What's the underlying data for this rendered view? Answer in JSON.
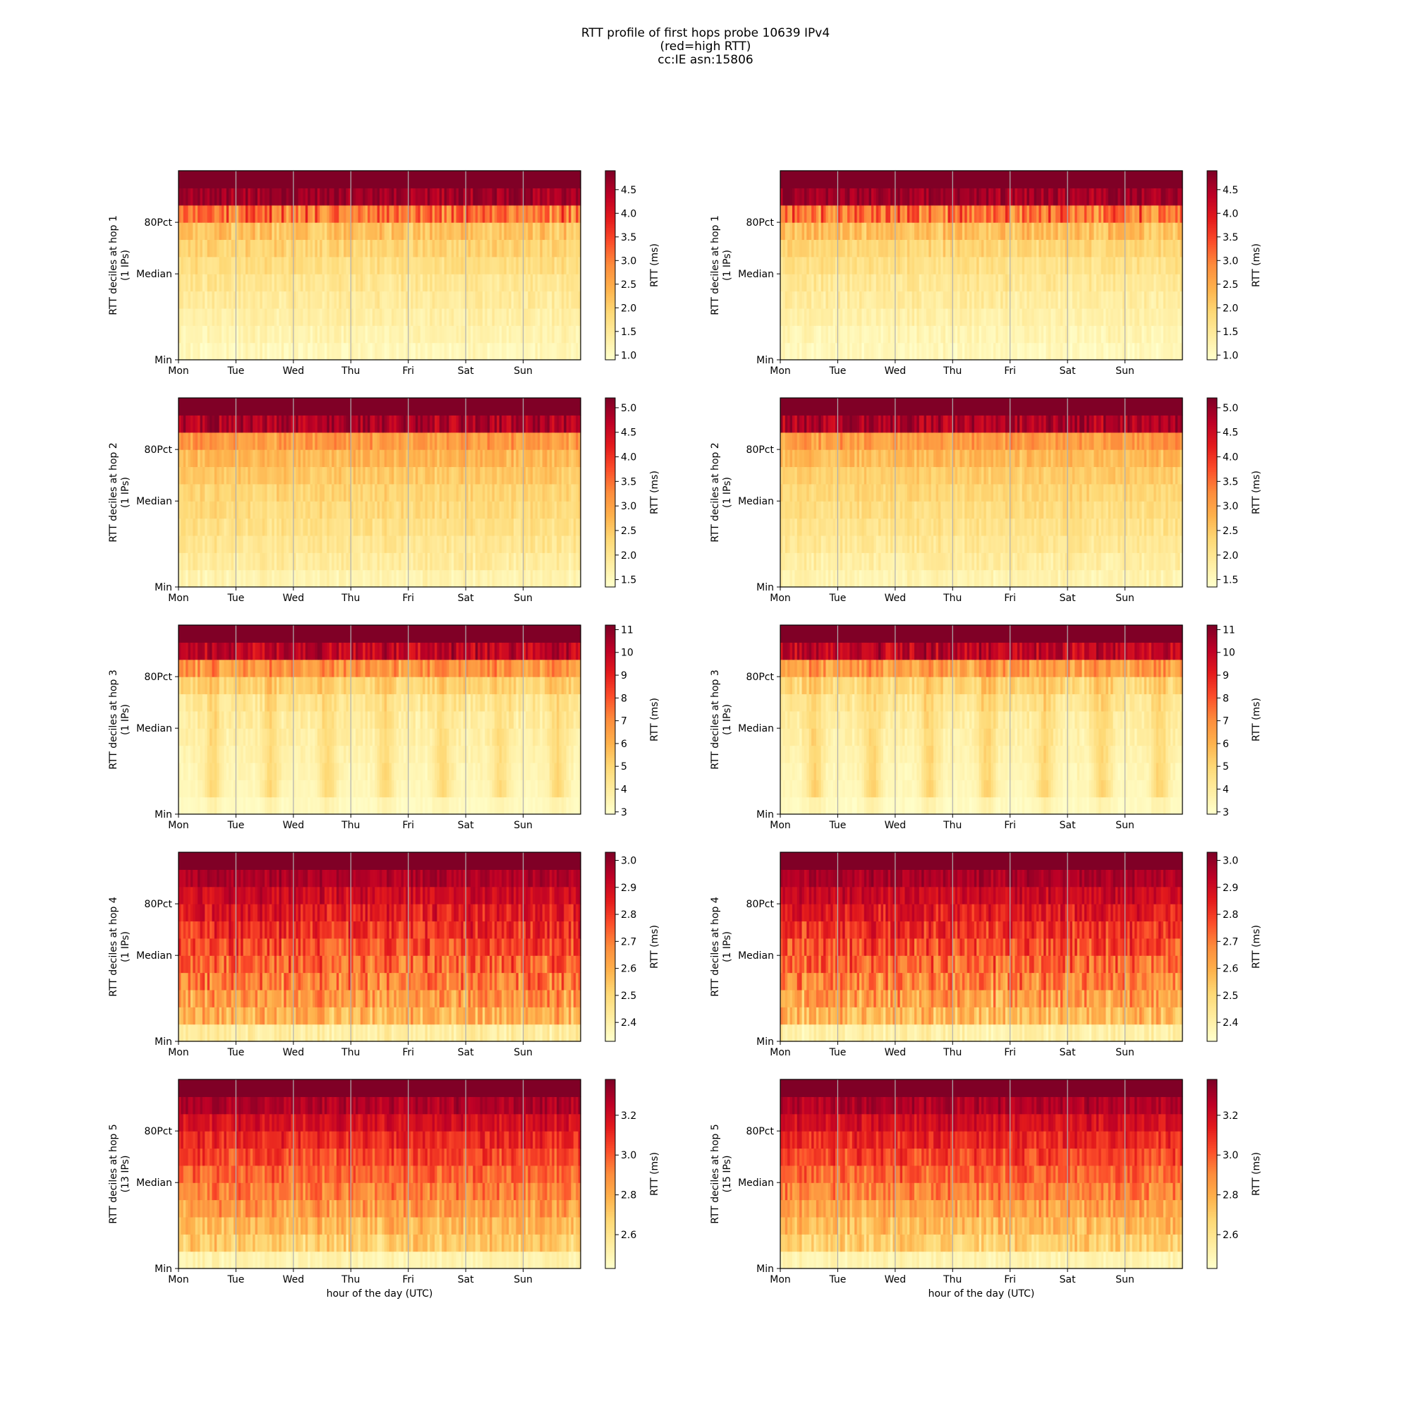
{
  "page": {
    "title_lines": [
      "RTT profile of first hops probe 10639 IPv4",
      "(red=high RTT)",
      "cc:IE asn:15806"
    ]
  },
  "chart_data": [
    {
      "type": "heatmap",
      "hop": 1,
      "ylabel": "RTT deciles at hop 1",
      "ylabel2": "(1 IPs)",
      "xlabel": "",
      "cbar_label": "RTT (ms)",
      "cbar_range": [
        0.9,
        4.9
      ],
      "cbar_ticks": [
        1.0,
        1.5,
        2.0,
        2.5,
        3.0,
        3.5,
        4.0,
        4.5
      ],
      "yticks": [
        "Min",
        "Median",
        "80Pct"
      ],
      "xticks": [
        "Mon",
        "Tue",
        "Wed",
        "Thu",
        "Fri",
        "Sat",
        "Sun"
      ],
      "decile_base": [
        0.05,
        0.08,
        0.11,
        0.14,
        0.17,
        0.21,
        0.26,
        0.32,
        0.55,
        0.93,
        1.0
      ],
      "decile_var": [
        0.04,
        0.04,
        0.04,
        0.05,
        0.05,
        0.05,
        0.06,
        0.08,
        0.15,
        0.08,
        0.0
      ],
      "daily_amp": 0.0
    },
    {
      "type": "heatmap",
      "hop": 1,
      "ylabel": "RTT deciles at hop 1",
      "ylabel2": "(1 IPs)",
      "xlabel": "",
      "cbar_label": "RTT (ms)",
      "cbar_range": [
        0.9,
        4.9
      ],
      "cbar_ticks": [
        1.0,
        1.5,
        2.0,
        2.5,
        3.0,
        3.5,
        4.0,
        4.5
      ],
      "yticks": [
        "Min",
        "Median",
        "80Pct"
      ],
      "xticks": [
        "Mon",
        "Tue",
        "Wed",
        "Thu",
        "Fri",
        "Sat",
        "Sun"
      ],
      "decile_base": [
        0.05,
        0.07,
        0.1,
        0.13,
        0.16,
        0.2,
        0.25,
        0.33,
        0.55,
        0.93,
        1.0
      ],
      "decile_var": [
        0.04,
        0.04,
        0.04,
        0.05,
        0.05,
        0.05,
        0.06,
        0.08,
        0.15,
        0.08,
        0.0
      ],
      "daily_amp": 0.0
    },
    {
      "type": "heatmap",
      "hop": 2,
      "ylabel": "RTT deciles at hop 2",
      "ylabel2": "(1 IPs)",
      "xlabel": "",
      "cbar_label": "RTT (ms)",
      "cbar_range": [
        1.35,
        5.2
      ],
      "cbar_ticks": [
        1.5,
        2.0,
        2.5,
        3.0,
        3.5,
        4.0,
        4.5,
        5.0
      ],
      "yticks": [
        "Min",
        "Median",
        "80Pct"
      ],
      "xticks": [
        "Mon",
        "Tue",
        "Wed",
        "Thu",
        "Fri",
        "Sat",
        "Sun"
      ],
      "decile_base": [
        0.08,
        0.13,
        0.17,
        0.2,
        0.23,
        0.26,
        0.3,
        0.36,
        0.45,
        0.9,
        1.0
      ],
      "decile_var": [
        0.04,
        0.05,
        0.05,
        0.05,
        0.05,
        0.05,
        0.05,
        0.06,
        0.08,
        0.1,
        0.0
      ],
      "daily_amp": 0.0
    },
    {
      "type": "heatmap",
      "hop": 2,
      "ylabel": "RTT deciles at hop 2",
      "ylabel2": "(1 IPs)",
      "xlabel": "",
      "cbar_label": "RTT (ms)",
      "cbar_range": [
        1.35,
        5.2
      ],
      "cbar_ticks": [
        1.5,
        2.0,
        2.5,
        3.0,
        3.5,
        4.0,
        4.5,
        5.0
      ],
      "yticks": [
        "Min",
        "Median",
        "80Pct"
      ],
      "xticks": [
        "Mon",
        "Tue",
        "Wed",
        "Thu",
        "Fri",
        "Sat",
        "Sun"
      ],
      "decile_base": [
        0.08,
        0.12,
        0.16,
        0.19,
        0.22,
        0.25,
        0.29,
        0.35,
        0.44,
        0.9,
        1.0
      ],
      "decile_var": [
        0.04,
        0.05,
        0.05,
        0.05,
        0.05,
        0.05,
        0.05,
        0.06,
        0.08,
        0.1,
        0.0
      ],
      "daily_amp": 0.0
    },
    {
      "type": "heatmap",
      "hop": 3,
      "ylabel": "RTT deciles at hop 3",
      "ylabel2": "(1 IPs)",
      "xlabel": "",
      "cbar_label": "RTT (ms)",
      "cbar_range": [
        2.9,
        11.2
      ],
      "cbar_ticks": [
        3,
        4,
        5,
        6,
        7,
        8,
        9,
        10,
        11
      ],
      "yticks": [
        "Min",
        "Median",
        "80Pct"
      ],
      "xticks": [
        "Mon",
        "Tue",
        "Wed",
        "Thu",
        "Fri",
        "Sat",
        "Sun"
      ],
      "decile_base": [
        0.03,
        0.05,
        0.06,
        0.08,
        0.1,
        0.12,
        0.16,
        0.25,
        0.45,
        0.85,
        1.0
      ],
      "decile_var": [
        0.02,
        0.02,
        0.03,
        0.03,
        0.04,
        0.05,
        0.06,
        0.07,
        0.1,
        0.1,
        0.0
      ],
      "daily_amp": 0.22
    },
    {
      "type": "heatmap",
      "hop": 3,
      "ylabel": "RTT deciles at hop 3",
      "ylabel2": "(1 IPs)",
      "xlabel": "",
      "cbar_label": "RTT (ms)",
      "cbar_range": [
        2.9,
        11.2
      ],
      "cbar_ticks": [
        3,
        4,
        5,
        6,
        7,
        8,
        9,
        10,
        11
      ],
      "yticks": [
        "Min",
        "Median",
        "80Pct"
      ],
      "xticks": [
        "Mon",
        "Tue",
        "Wed",
        "Thu",
        "Fri",
        "Sat",
        "Sun"
      ],
      "decile_base": [
        0.03,
        0.05,
        0.06,
        0.08,
        0.1,
        0.12,
        0.16,
        0.24,
        0.43,
        0.85,
        1.0
      ],
      "decile_var": [
        0.02,
        0.02,
        0.03,
        0.03,
        0.04,
        0.05,
        0.06,
        0.07,
        0.1,
        0.1,
        0.0
      ],
      "daily_amp": 0.25
    },
    {
      "type": "heatmap",
      "hop": 4,
      "ylabel": "RTT deciles at hop 4",
      "ylabel2": "(1 IPs)",
      "xlabel": "",
      "cbar_label": "RTT (ms)",
      "cbar_range": [
        2.33,
        3.03
      ],
      "cbar_ticks": [
        2.4,
        2.5,
        2.6,
        2.7,
        2.8,
        2.9,
        3.0
      ],
      "yticks": [
        "Min",
        "Median",
        "80Pct"
      ],
      "xticks": [
        "Mon",
        "Tue",
        "Wed",
        "Thu",
        "Fri",
        "Sat",
        "Sun"
      ],
      "decile_base": [
        0.12,
        0.38,
        0.45,
        0.52,
        0.58,
        0.64,
        0.7,
        0.76,
        0.82,
        0.9,
        1.0
      ],
      "decile_var": [
        0.06,
        0.12,
        0.13,
        0.13,
        0.13,
        0.12,
        0.11,
        0.1,
        0.08,
        0.06,
        0.0
      ],
      "daily_amp": 0.0
    },
    {
      "type": "heatmap",
      "hop": 4,
      "ylabel": "RTT deciles at hop 4",
      "ylabel2": "(1 IPs)",
      "xlabel": "",
      "cbar_label": "RTT (ms)",
      "cbar_range": [
        2.33,
        3.03
      ],
      "cbar_ticks": [
        2.4,
        2.5,
        2.6,
        2.7,
        2.8,
        2.9,
        3.0
      ],
      "yticks": [
        "Min",
        "Median",
        "80Pct"
      ],
      "xticks": [
        "Mon",
        "Tue",
        "Wed",
        "Thu",
        "Fri",
        "Sat",
        "Sun"
      ],
      "decile_base": [
        0.1,
        0.36,
        0.44,
        0.51,
        0.58,
        0.64,
        0.7,
        0.76,
        0.83,
        0.91,
        1.0
      ],
      "decile_var": [
        0.06,
        0.13,
        0.14,
        0.14,
        0.13,
        0.12,
        0.11,
        0.1,
        0.08,
        0.06,
        0.0
      ],
      "daily_amp": 0.0
    },
    {
      "type": "heatmap",
      "hop": 5,
      "ylabel": "RTT deciles at hop 5",
      "ylabel2": "(13 IPs)",
      "xlabel": "hour of the day (UTC)",
      "cbar_label": "RTT (ms)",
      "cbar_range": [
        2.43,
        3.38
      ],
      "cbar_ticks": [
        2.6,
        2.8,
        3.0,
        3.2
      ],
      "yticks": [
        "Min",
        "Median",
        "80Pct"
      ],
      "xticks": [
        "Mon",
        "Tue",
        "Wed",
        "Thu",
        "Fri",
        "Sat",
        "Sun"
      ],
      "decile_base": [
        0.08,
        0.28,
        0.36,
        0.44,
        0.52,
        0.58,
        0.65,
        0.72,
        0.8,
        0.9,
        1.0
      ],
      "decile_var": [
        0.04,
        0.1,
        0.1,
        0.1,
        0.1,
        0.09,
        0.09,
        0.08,
        0.07,
        0.06,
        0.0
      ],
      "daily_amp": 0.0
    },
    {
      "type": "heatmap",
      "hop": 5,
      "ylabel": "RTT deciles at hop 5",
      "ylabel2": "(15 IPs)",
      "xlabel": "hour of the day (UTC)",
      "cbar_label": "RTT (ms)",
      "cbar_range": [
        2.43,
        3.38
      ],
      "cbar_ticks": [
        2.6,
        2.8,
        3.0,
        3.2
      ],
      "yticks": [
        "Min",
        "Median",
        "80Pct"
      ],
      "xticks": [
        "Mon",
        "Tue",
        "Wed",
        "Thu",
        "Fri",
        "Sat",
        "Sun"
      ],
      "decile_base": [
        0.08,
        0.27,
        0.35,
        0.43,
        0.51,
        0.58,
        0.65,
        0.72,
        0.8,
        0.9,
        1.0
      ],
      "decile_var": [
        0.04,
        0.1,
        0.1,
        0.1,
        0.1,
        0.09,
        0.09,
        0.08,
        0.07,
        0.06,
        0.0
      ],
      "daily_amp": 0.0
    }
  ]
}
